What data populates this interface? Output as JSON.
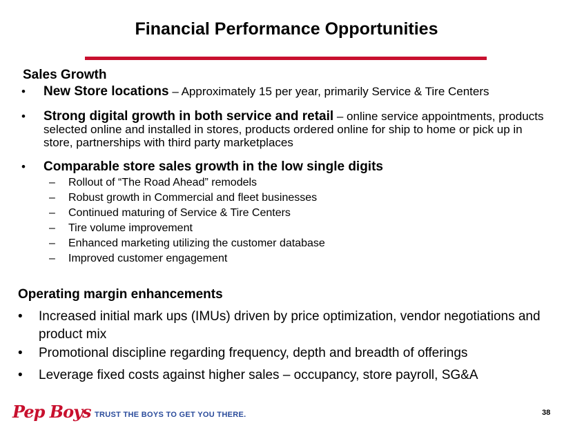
{
  "title": "Financial Performance Opportunities",
  "sales_growth": {
    "heading": "Sales Growth",
    "bullets": [
      {
        "bold": "New Store locations",
        "text": " – Approximately 15 per year, primarily Service & Tire Centers"
      },
      {
        "bold": "Strong digital growth in both service and retail",
        "text": " – online service appointments, products selected online and installed in stores, products ordered online for ship to home or pick up in store, partnerships with third party marketplaces"
      },
      {
        "bold": "Comparable store sales growth in the low single digits",
        "text": ""
      }
    ],
    "sub_bullets": [
      "Rollout of “The Road Ahead” remodels",
      "Robust growth in Commercial and fleet businesses",
      "Continued maturing of Service & Tire Centers",
      "Tire volume improvement",
      "Enhanced marketing utilizing the customer database",
      "Improved customer engagement"
    ]
  },
  "operating_margin": {
    "heading": "Operating margin enhancements",
    "bullets": [
      "Increased initial mark ups (IMUs) driven by price optimization, vendor negotiations and product mix",
      "Promotional discipline regarding frequency, depth and breadth of offerings",
      "Leverage fixed costs against higher sales – occupancy, store payroll, SG&A"
    ]
  },
  "footer": {
    "logo_text": "Pep Boys",
    "tagline": "TRUST THE BOYS TO GET YOU THERE.",
    "page_number": "38"
  },
  "colors": {
    "accent": "#c8102e",
    "tagline": "#2a4b9b"
  }
}
